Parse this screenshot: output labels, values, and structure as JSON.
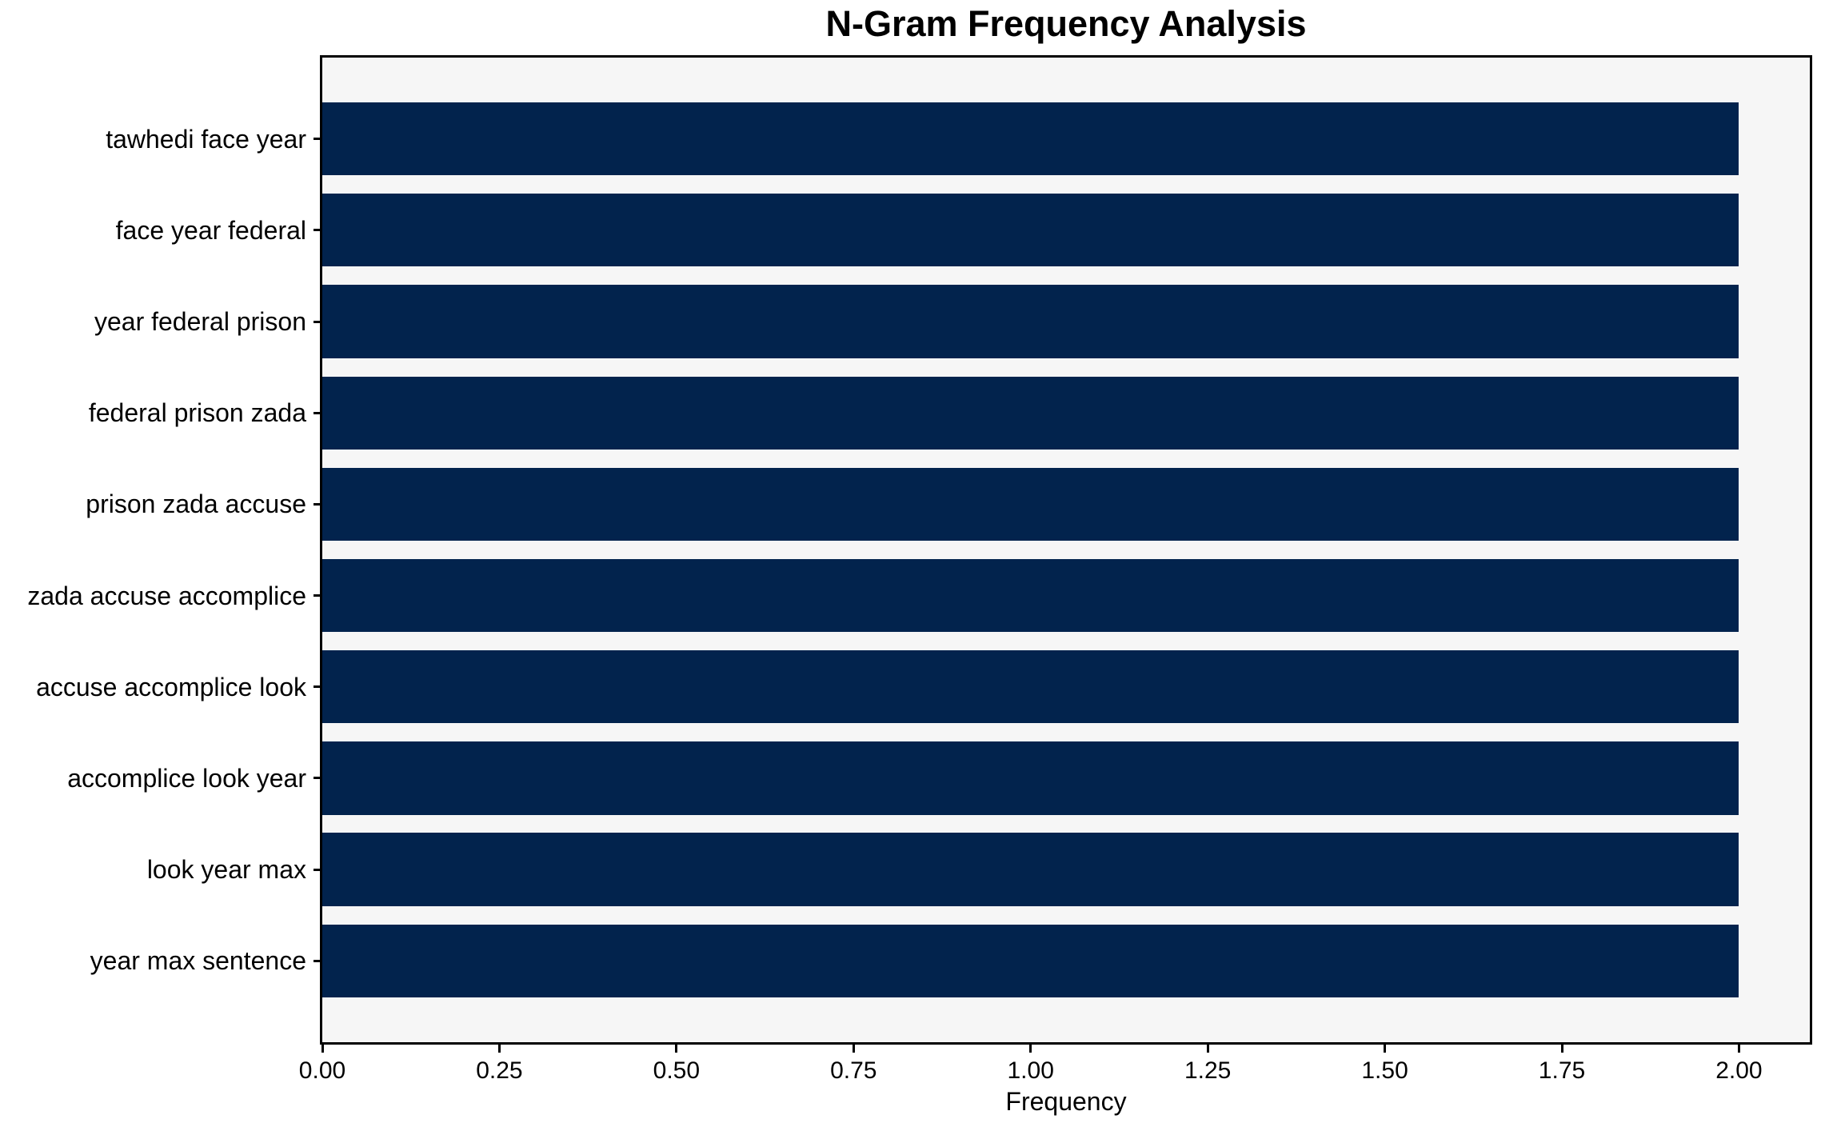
{
  "chart_data": {
    "type": "bar",
    "orientation": "horizontal",
    "title": "N-Gram Frequency Analysis",
    "xlabel": "Frequency",
    "ylabel": "",
    "categories": [
      "tawhedi face year",
      "face year federal",
      "year federal prison",
      "federal prison zada",
      "prison zada accuse",
      "zada accuse accomplice",
      "accuse accomplice look",
      "accomplice look year",
      "look year max",
      "year max sentence"
    ],
    "values": [
      2,
      2,
      2,
      2,
      2,
      2,
      2,
      2,
      2,
      2
    ],
    "xlim": [
      0,
      2.1
    ],
    "xticks": [
      {
        "value": 0.0,
        "label": "0.00"
      },
      {
        "value": 0.25,
        "label": "0.25"
      },
      {
        "value": 0.5,
        "label": "0.50"
      },
      {
        "value": 0.75,
        "label": "0.75"
      },
      {
        "value": 1.0,
        "label": "1.00"
      },
      {
        "value": 1.25,
        "label": "1.25"
      },
      {
        "value": 1.5,
        "label": "1.50"
      },
      {
        "value": 1.75,
        "label": "1.75"
      },
      {
        "value": 2.0,
        "label": "2.00"
      }
    ],
    "grid": false,
    "legend": "none",
    "bar_color": "#02234d",
    "plot_background": "#f6f6f6",
    "figure_background": "#ffffff",
    "text_color": "#000000",
    "bar_height_units": 0.8,
    "axis_margin_frac": 0.05
  }
}
